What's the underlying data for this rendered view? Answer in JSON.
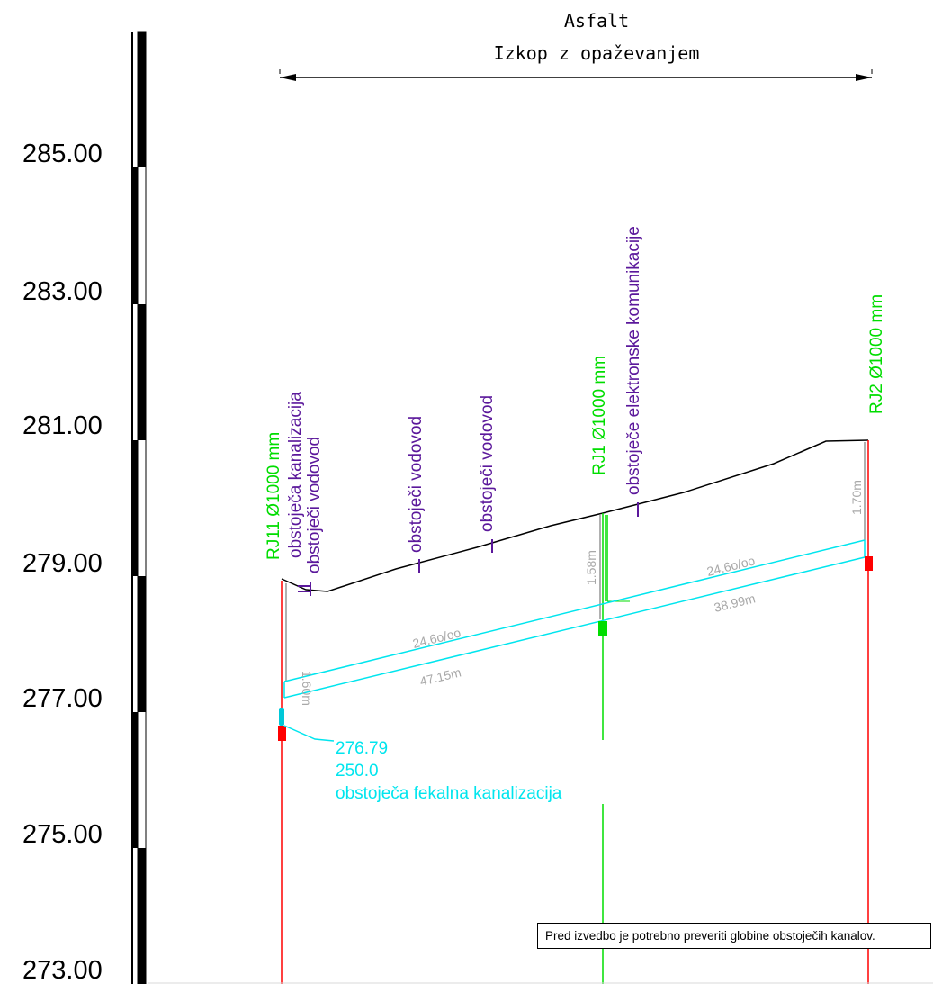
{
  "header": {
    "line1": "Asfalt",
    "line2": "Izkop z opaževanjem"
  },
  "scale": {
    "labels": [
      "285.00",
      "283.00",
      "281.00",
      "279.00",
      "277.00",
      "275.00",
      "273.00"
    ]
  },
  "manholes": {
    "rj11": "RJ11 Ø1000 mm",
    "rj1": "RJ1 Ø1000 mm",
    "rj2": "RJ2 Ø1000 mm"
  },
  "utilities": {
    "kanalizacija": "obstoječa kanalizacija",
    "vodovod_1": "obstoječi vodovod",
    "vodovod_2": "obstoječi vodovod",
    "vodovod_3": "obstoječi vodovod",
    "elektronske": "obstoječe elektronske komunikacije"
  },
  "depths": {
    "rj11": "1.60m",
    "rj1": "1.58m",
    "rj2": "1.70m"
  },
  "segments": {
    "slope_1": "24.6o/oo",
    "length_1": "47.15m",
    "slope_2": "24.6o/oo",
    "length_2": "38.99m"
  },
  "connection": {
    "elevation": "276.79",
    "diameter": "250.0",
    "name": "obstoječa fekalna kanalizacija"
  },
  "note": "Pred izvedbo je potrebno preveriti globine obstoječih kanalov.",
  "colors": {
    "pipe": "#00e5ee",
    "manhole_label": "#00dd00",
    "utility": "#5b189b",
    "manhole_axis": "#ff0000",
    "terrain": "#000000"
  }
}
